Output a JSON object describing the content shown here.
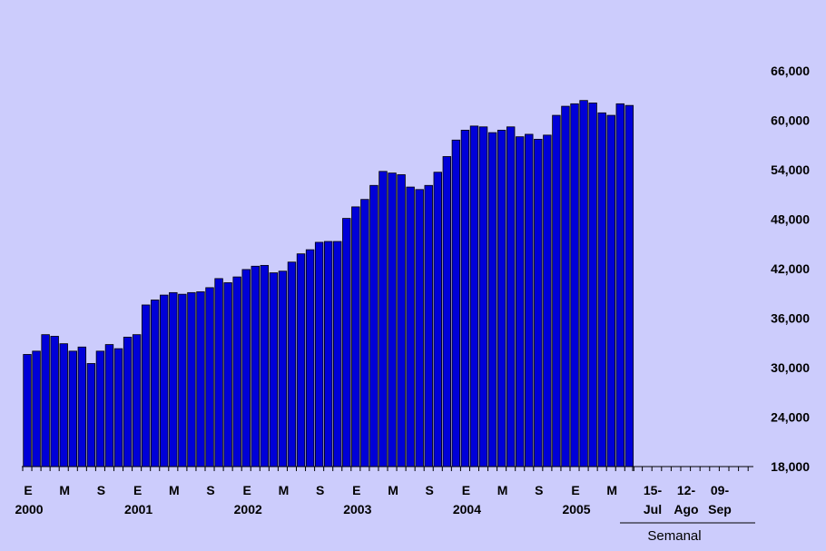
{
  "chart_data": {
    "type": "bar",
    "categories": [
      "2000-01",
      "2000-02",
      "2000-03",
      "2000-04",
      "2000-05",
      "2000-06",
      "2000-07",
      "2000-08",
      "2000-09",
      "2000-10",
      "2000-11",
      "2000-12",
      "2001-01",
      "2001-02",
      "2001-03",
      "2001-04",
      "2001-05",
      "2001-06",
      "2001-07",
      "2001-08",
      "2001-09",
      "2001-10",
      "2001-11",
      "2001-12",
      "2002-01",
      "2002-02",
      "2002-03",
      "2002-04",
      "2002-05",
      "2002-06",
      "2002-07",
      "2002-08",
      "2002-09",
      "2002-10",
      "2002-11",
      "2002-12",
      "2003-01",
      "2003-02",
      "2003-03",
      "2003-04",
      "2003-05",
      "2003-06",
      "2003-07",
      "2003-08",
      "2003-09",
      "2003-10",
      "2003-11",
      "2003-12",
      "2004-01",
      "2004-02",
      "2004-03",
      "2004-04",
      "2004-05",
      "2004-06",
      "2004-07",
      "2004-08",
      "2004-09",
      "2004-10",
      "2004-11",
      "2004-12",
      "2005-01",
      "2005-02",
      "2005-03",
      "2005-04",
      "2005-05",
      "2005-06",
      "2005-07"
    ],
    "values": [
      31600,
      32000,
      34000,
      33800,
      32900,
      32000,
      32500,
      30500,
      32000,
      32800,
      32300,
      33700,
      34000,
      37600,
      38200,
      38800,
      39100,
      38900,
      39100,
      39200,
      39700,
      40800,
      40300,
      41000,
      41900,
      42300,
      42400,
      41500,
      41700,
      42800,
      43800,
      44300,
      45200,
      45300,
      45300,
      48100,
      49500,
      50400,
      52100,
      53800,
      53600,
      53400,
      51900,
      51600,
      52100,
      53700,
      55600,
      57600,
      58800,
      59300,
      59200,
      58500,
      58800,
      59200,
      58000,
      58300,
      57700,
      58200,
      60600,
      61700,
      62000,
      62400,
      62100,
      60900,
      60600,
      62000,
      61800
    ],
    "ylim": [
      18000,
      66000
    ],
    "y_ticks": [
      "18,000",
      "24,000",
      "30,000",
      "36,000",
      "42,000",
      "48,000",
      "54,000",
      "60,000",
      "66,000"
    ],
    "y_tick_values": [
      18000,
      24000,
      30000,
      36000,
      42000,
      48000,
      54000,
      60000,
      66000
    ],
    "month_labels": [
      "E",
      "M",
      "S",
      "E",
      "M",
      "S",
      "E",
      "M",
      "S",
      "E",
      "M",
      "S",
      "E",
      "M",
      "S",
      "E",
      "M"
    ],
    "year_labels": [
      "2000",
      "2001",
      "2002",
      "2003",
      "2004",
      "2005"
    ],
    "weekly_labels": [
      {
        "top": "15-",
        "bottom": "Jul"
      },
      {
        "top": "12-",
        "bottom": "Ago"
      },
      {
        "top": "09-",
        "bottom": "Sep"
      }
    ],
    "weekly_section_label": "Semanal",
    "colors": {
      "bar": "#0000d8",
      "bar_edge": "#000000",
      "background": "#ccccfc",
      "text": "#000000"
    },
    "grid": false,
    "y_axis_side": "right"
  }
}
